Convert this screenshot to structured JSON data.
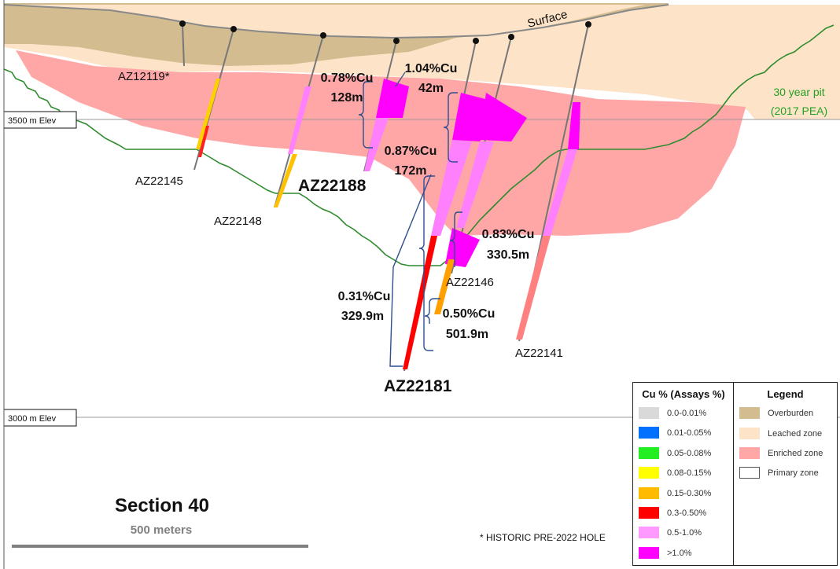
{
  "surface_label": "Surface",
  "pit_label": [
    "30 year pit",
    "(2017 PEA)"
  ],
  "elevations": [
    "3500 m Elev",
    "3000 m Elev"
  ],
  "historic_note": "* HISTORIC PRE-2022 HOLE",
  "section_title": "Section 40",
  "scale_label": "500 meters",
  "holes": [
    {
      "id": "AZ12119*",
      "bold": false
    },
    {
      "id": "AZ22145",
      "bold": false
    },
    {
      "id": "AZ22148",
      "bold": false
    },
    {
      "id": "AZ22188",
      "bold": true
    },
    {
      "id": "AZ22181",
      "bold": true
    },
    {
      "id": "AZ22146",
      "bold": false
    },
    {
      "id": "AZ22141",
      "bold": false
    }
  ],
  "intercepts": [
    {
      "grade": "0.78%Cu",
      "length": "128m"
    },
    {
      "grade": "1.04%Cu",
      "length": "42m"
    },
    {
      "grade": "0.87%Cu",
      "length": "172m"
    },
    {
      "grade": "0.83%Cu",
      "length": "330.5m"
    },
    {
      "grade": "0.31%Cu",
      "length": "329.9m"
    },
    {
      "grade": "0.50%Cu",
      "length": "501.9m"
    }
  ],
  "assay_legend": {
    "title": "Cu % (Assays %)",
    "items": [
      {
        "label": "0.0-0.01%",
        "color": "#d9d9d9"
      },
      {
        "label": "0.01-0.05%",
        "color": "#0070ff"
      },
      {
        "label": "0.05-0.08%",
        "color": "#22ee22"
      },
      {
        "label": "0.08-0.15%",
        "color": "#ffff00"
      },
      {
        "label": "0.15-0.30%",
        "color": "#ffbb00"
      },
      {
        "label": "0.3-0.50%",
        "color": "#ff0000"
      },
      {
        "label": "0.5-1.0%",
        "color": "#ff99ff"
      },
      {
        "label": ">1.0%",
        "color": "#ff00ff"
      }
    ]
  },
  "zone_legend": {
    "title": "Legend",
    "items": [
      {
        "label": "Overburden",
        "color": "#d3bd90"
      },
      {
        "label": "Leached zone",
        "color": "#fde4c8"
      },
      {
        "label": "Enriched zone",
        "color": "#ffa7a7"
      },
      {
        "label": "Primary zone",
        "color": "#ffffff"
      }
    ]
  },
  "colors": {
    "pit_outline": "#2e8b2e",
    "pit_label": "#22a022",
    "brace": "#2f4f8f"
  }
}
